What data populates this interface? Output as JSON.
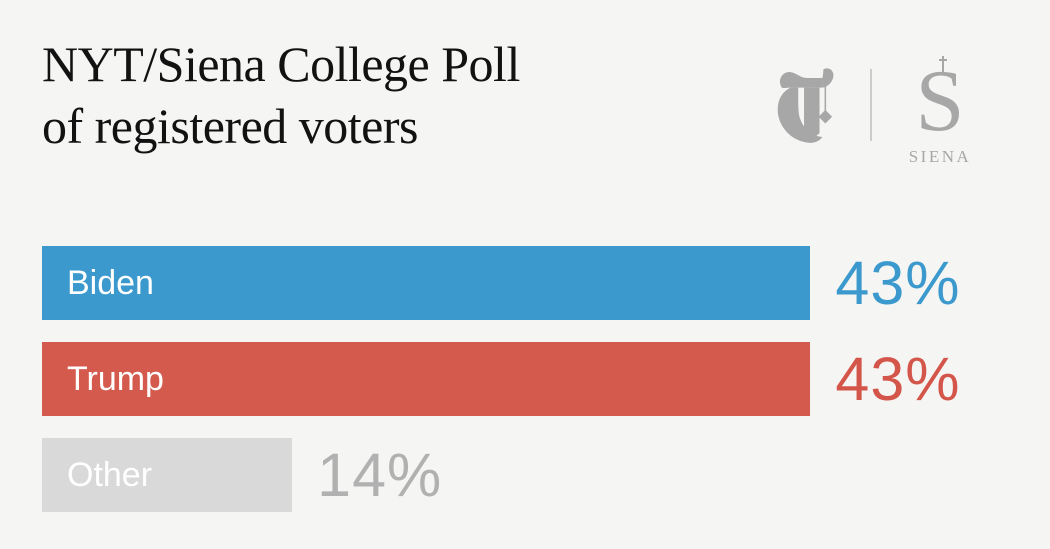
{
  "header": {
    "title_line1": "NYT/Siena College Poll",
    "title_line2": "of registered voters",
    "siena_monogram": "S",
    "siena_label": "SIENA"
  },
  "colors": {
    "background": "#f5f5f3",
    "title_text": "#121212",
    "logo_gray": "#a7a7a7",
    "logo_divider": "#cccccc"
  },
  "chart_data": {
    "type": "bar",
    "orientation": "horizontal",
    "title": "NYT/Siena College Poll of registered voters",
    "categories": [
      "Biden",
      "Trump",
      "Other"
    ],
    "values": [
      43,
      43,
      14
    ],
    "value_labels": [
      "43%",
      "43%",
      "14%"
    ],
    "unit": "percent",
    "xlim": [
      0,
      54
    ],
    "grid": false,
    "legend": false,
    "bar_colors": [
      "#3b99cd",
      "#d45a4d",
      "#d9d9d9"
    ],
    "value_label_colors": [
      "#3b99cd",
      "#d4564a",
      "#b1b1b1"
    ],
    "bar_label_color": "#ffffff"
  }
}
